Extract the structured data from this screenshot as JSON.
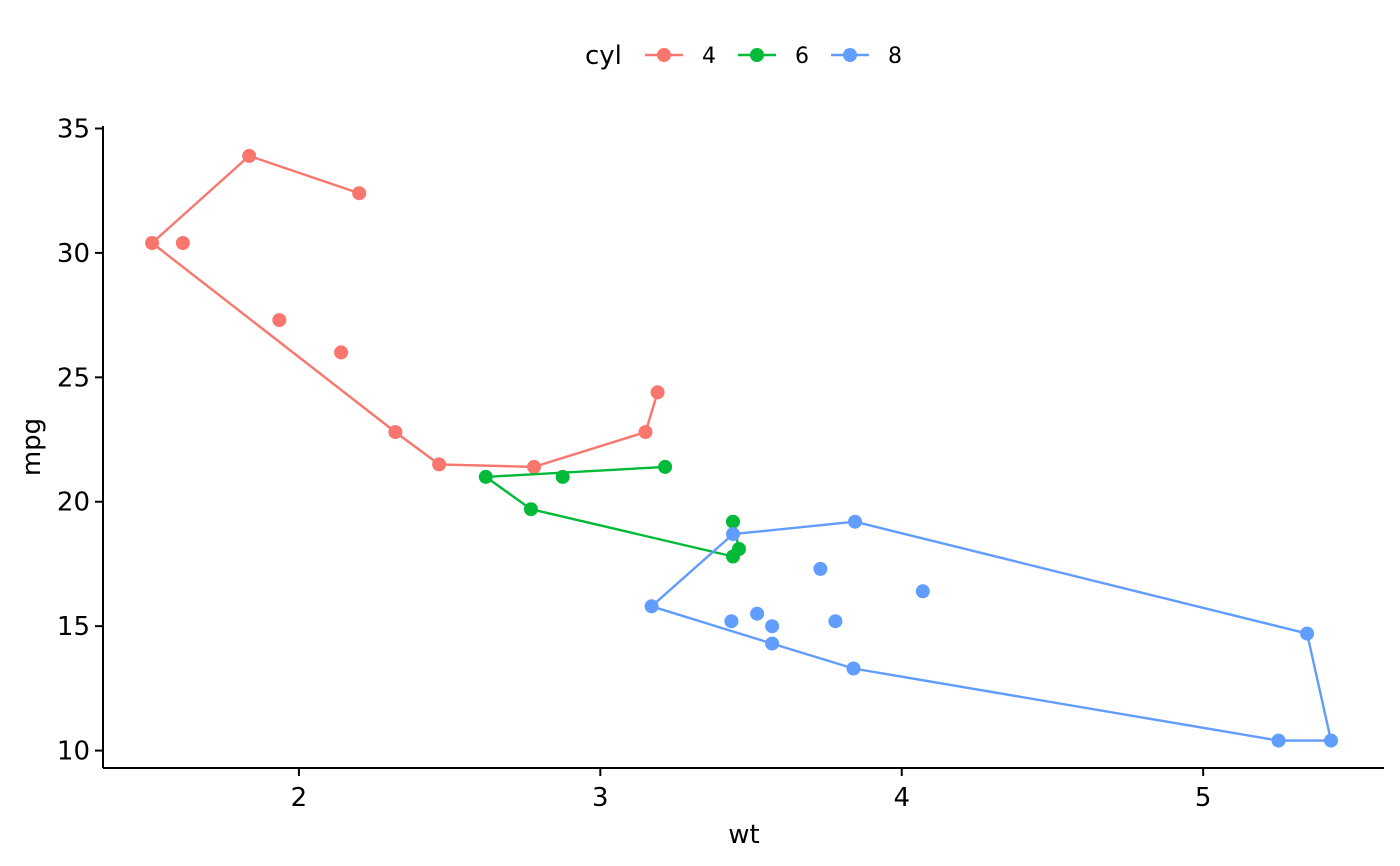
{
  "chart_data": {
    "type": "line",
    "xlabel": "wt",
    "ylabel": "mpg",
    "xlim": [
      1.35,
      5.6
    ],
    "ylim": [
      9.3,
      35.1
    ],
    "xticks": [
      2,
      3,
      4,
      5
    ],
    "yticks": [
      10,
      15,
      20,
      25,
      30,
      35
    ],
    "grid": false,
    "legend": {
      "title": "cyl",
      "position": "top"
    },
    "series": [
      {
        "name": "4",
        "color": "#F8766D",
        "points": [
          [
            2.32,
            22.8
          ],
          [
            3.19,
            24.4
          ],
          [
            3.15,
            22.8
          ],
          [
            2.2,
            32.4
          ],
          [
            1.615,
            30.4
          ],
          [
            1.835,
            33.9
          ],
          [
            2.465,
            21.5
          ],
          [
            1.935,
            27.3
          ],
          [
            2.14,
            26.0
          ],
          [
            1.513,
            30.4
          ],
          [
            2.78,
            21.4
          ]
        ],
        "path": [
          [
            2.2,
            32.4
          ],
          [
            1.835,
            33.9
          ],
          [
            1.513,
            30.4
          ],
          [
            2.32,
            22.8
          ],
          [
            2.465,
            21.5
          ],
          [
            2.78,
            21.4
          ],
          [
            3.15,
            22.8
          ],
          [
            3.19,
            24.4
          ]
        ]
      },
      {
        "name": "6",
        "color": "#00BA38",
        "points": [
          [
            2.62,
            21.0
          ],
          [
            2.875,
            21.0
          ],
          [
            3.215,
            21.4
          ],
          [
            3.46,
            18.1
          ],
          [
            3.44,
            19.2
          ],
          [
            3.44,
            17.8
          ],
          [
            2.77,
            19.7
          ]
        ],
        "path": [
          [
            3.215,
            21.4
          ],
          [
            2.62,
            21.0
          ],
          [
            2.77,
            19.7
          ],
          [
            3.44,
            17.8
          ],
          [
            3.46,
            18.1
          ],
          [
            3.44,
            19.2
          ]
        ]
      },
      {
        "name": "8",
        "color": "#619CFF",
        "points": [
          [
            3.44,
            18.7
          ],
          [
            3.57,
            14.3
          ],
          [
            4.07,
            16.4
          ],
          [
            3.73,
            17.3
          ],
          [
            3.78,
            15.2
          ],
          [
            5.25,
            10.4
          ],
          [
            5.424,
            10.4
          ],
          [
            5.345,
            14.7
          ],
          [
            3.52,
            15.5
          ],
          [
            3.435,
            15.2
          ],
          [
            3.84,
            13.3
          ],
          [
            3.845,
            19.2
          ],
          [
            3.17,
            15.8
          ],
          [
            3.57,
            15.0
          ]
        ],
        "path": [
          [
            3.845,
            19.2
          ],
          [
            3.44,
            18.7
          ],
          [
            3.17,
            15.8
          ],
          [
            3.57,
            14.3
          ],
          [
            3.84,
            13.3
          ],
          [
            5.25,
            10.4
          ],
          [
            5.424,
            10.4
          ],
          [
            5.345,
            14.7
          ],
          [
            3.845,
            19.2
          ]
        ]
      }
    ]
  }
}
